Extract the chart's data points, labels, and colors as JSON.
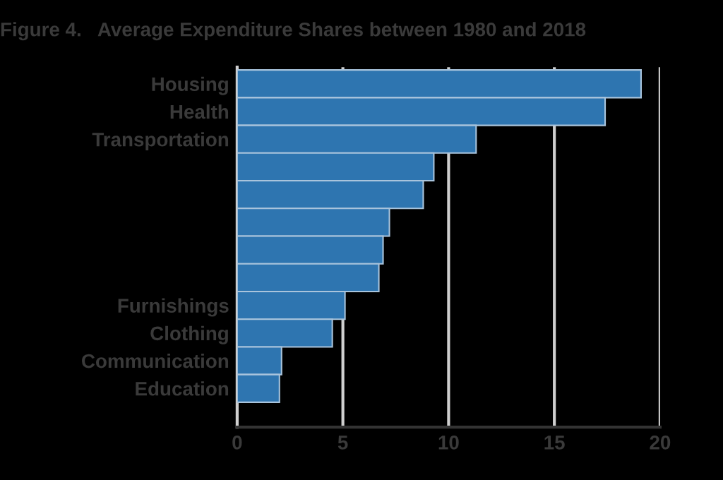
{
  "chart_data": {
    "type": "bar",
    "orientation": "horizontal",
    "title": "Figure 4.   Average Expenditure Shares between 1980 and 2018",
    "categories": [
      "Housing",
      "Health",
      "Transportation",
      null,
      null,
      null,
      null,
      null,
      "Furnishings",
      "Clothing",
      "Communication",
      "Education"
    ],
    "values": [
      19.1,
      17.4,
      11.3,
      9.3,
      8.8,
      7.2,
      6.9,
      6.7,
      5.1,
      4.5,
      2.1,
      2.0
    ],
    "color": "#2e75b0",
    "xlim": [
      0,
      20
    ],
    "xticks": [
      0,
      5,
      10,
      15,
      20
    ],
    "grid": "x"
  }
}
